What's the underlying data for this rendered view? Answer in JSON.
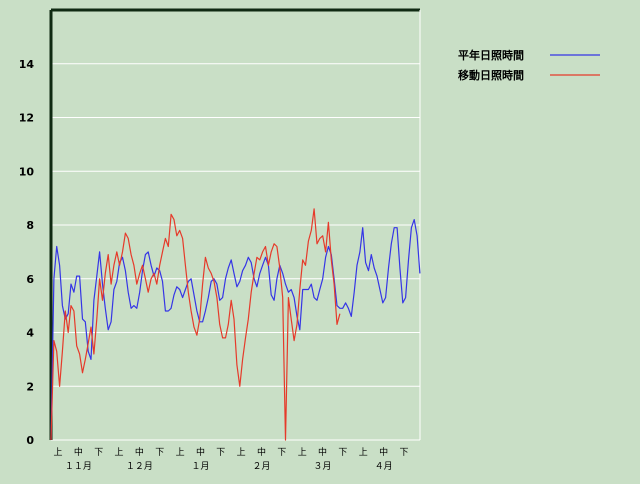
{
  "chart_data": {
    "type": "line",
    "title": "",
    "xlabel": "",
    "ylabel": "",
    "ylim": [
      0,
      16
    ],
    "yticks": [
      0,
      2,
      4,
      6,
      8,
      10,
      12,
      14
    ],
    "grid": true,
    "legend_position": "top-right",
    "period_labels": [
      "上",
      "中",
      "下",
      "上",
      "中",
      "下",
      "上",
      "中",
      "下",
      "上",
      "中",
      "下",
      "上",
      "中",
      "下",
      "上",
      "中",
      "下"
    ],
    "month_labels": [
      "１１月",
      "１２月",
      "１月",
      "２月",
      "３月",
      "４月"
    ],
    "series": [
      {
        "name": "平年日照時間",
        "color": "#3535e6",
        "values": [
          0,
          6.0,
          7.2,
          6.5,
          5.0,
          4.5,
          4.7,
          5.8,
          5.5,
          6.1,
          6.1,
          4.5,
          4.4,
          3.3,
          3.0,
          5.2,
          6.1,
          7.0,
          5.8,
          4.9,
          4.1,
          4.4,
          5.6,
          5.9,
          6.6,
          6.8,
          6.3,
          5.5,
          4.9,
          5.0,
          4.9,
          5.5,
          6.3,
          6.9,
          7.0,
          6.5,
          6.1,
          6.4,
          6.3,
          5.9,
          4.8,
          4.8,
          4.9,
          5.4,
          5.7,
          5.6,
          5.3,
          5.6,
          5.9,
          6.0,
          5.4,
          4.8,
          4.4,
          4.4,
          4.8,
          5.3,
          5.9,
          6.0,
          5.8,
          5.2,
          5.3,
          6.0,
          6.4,
          6.7,
          6.2,
          5.7,
          5.9,
          6.3,
          6.5,
          6.8,
          6.6,
          6.0,
          5.7,
          6.2,
          6.5,
          6.8,
          6.5,
          5.4,
          5.2,
          6.0,
          6.5,
          6.2,
          5.8,
          5.5,
          5.6,
          5.3,
          4.6,
          4.1,
          5.6,
          5.6,
          5.6,
          5.8,
          5.3,
          5.2,
          5.6,
          6.0,
          6.8,
          7.2,
          6.9,
          6.0,
          5.0,
          4.9,
          4.9,
          5.1,
          4.9,
          4.6,
          5.5,
          6.5,
          7.0,
          7.9,
          6.6,
          6.3,
          6.9,
          6.4,
          6.1,
          5.6,
          5.1,
          5.3,
          6.4,
          7.3,
          7.9,
          7.9,
          6.4,
          5.1,
          5.3,
          6.7,
          7.9,
          8.2,
          7.6,
          6.2
        ]
      },
      {
        "name": "移動日照時間",
        "color": "#e63a2a",
        "values": [
          0,
          3.7,
          3.3,
          2.0,
          3.3,
          4.8,
          4.0,
          5.0,
          4.8,
          3.5,
          3.2,
          2.5,
          3.0,
          3.6,
          4.2,
          3.2,
          4.5,
          6.0,
          5.2,
          6.2,
          6.9,
          5.8,
          6.5,
          7.0,
          6.5,
          7.0,
          7.7,
          7.5,
          6.9,
          6.5,
          5.8,
          6.2,
          6.5,
          6.0,
          5.5,
          6.0,
          6.2,
          5.8,
          6.5,
          7.0,
          7.5,
          7.2,
          8.4,
          8.2,
          7.6,
          7.8,
          7.5,
          6.5,
          5.5,
          4.8,
          4.2,
          3.9,
          4.5,
          5.8,
          6.8,
          6.4,
          6.2,
          5.9,
          5.3,
          4.3,
          3.8,
          3.8,
          4.3,
          5.2,
          4.5,
          2.8,
          2.0,
          3.0,
          3.8,
          4.5,
          5.5,
          6.2,
          6.8,
          6.7,
          7.0,
          7.2,
          6.5,
          7.0,
          7.3,
          7.2,
          6.4,
          5.3,
          0.0,
          5.3,
          4.5,
          3.7,
          4.3,
          5.6,
          6.7,
          6.5,
          7.4,
          7.8,
          8.6,
          7.3,
          7.5,
          7.6,
          7.0,
          8.1,
          6.7,
          5.8,
          4.3,
          4.7
        ]
      }
    ]
  }
}
